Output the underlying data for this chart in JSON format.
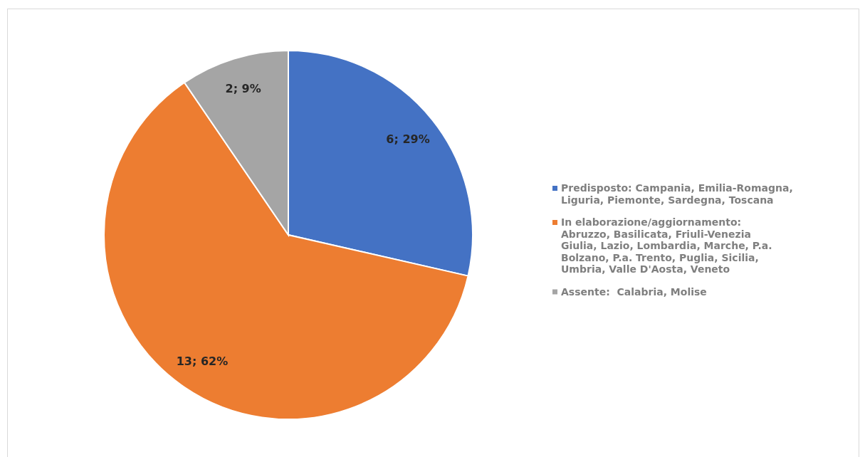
{
  "chart_data": {
    "type": "pie",
    "categories": [
      "Predisposto: Campania, Emilia-Romagna, Liguria, Piemonte, Sardegna, Toscana",
      "In elaborazione/aggiornamento: Abruzzo, Basilicata, Friuli-Venezia Giulia, Lazio, Lombardia, Marche, P.a. Bolzano, P.a. Trento, Puglia, Sicilia, Umbria, Valle D'Aosta, Veneto",
      "Assente:  Calabria, Molise"
    ],
    "values": [
      6,
      13,
      2
    ],
    "colors": [
      "#4472c4",
      "#ed7d31",
      "#a5a5a5"
    ],
    "value_labels": [
      "6; 29%",
      "13; 62%",
      "2; 9%"
    ],
    "legend": "right"
  }
}
